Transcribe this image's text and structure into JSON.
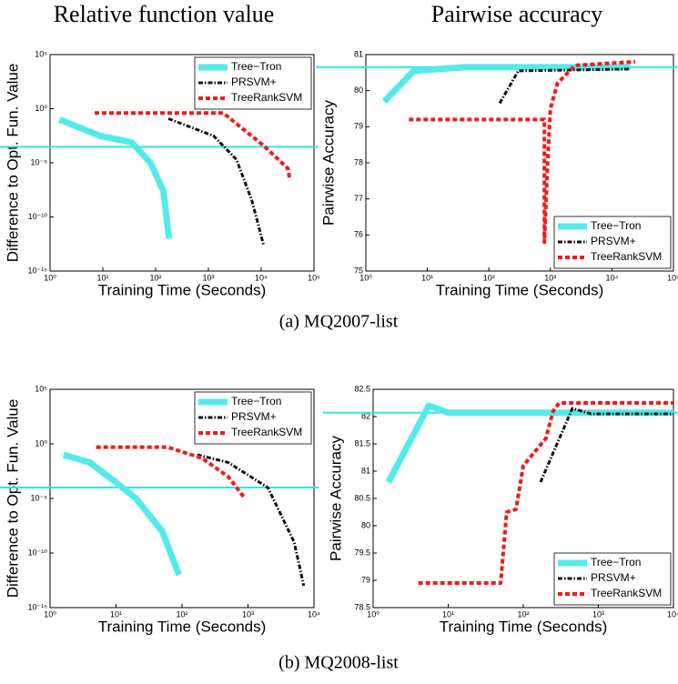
{
  "column_titles": [
    "Relative function value",
    "Pairwise accuracy"
  ],
  "captions": [
    "(a) MQ2007-list",
    "(b) MQ2008-list"
  ],
  "chart_data": [
    {
      "type": "line",
      "xlabel": "Training Time (Seconds)",
      "ylabel": "Difference to Opt. Fun. Value",
      "xlog": true,
      "ylog": true,
      "xlim": [
        1,
        100000
      ],
      "ylim": [
        1e-15,
        100000
      ],
      "xticks": [
        {
          "value": 1,
          "label": "10⁰"
        },
        {
          "value": 10,
          "label": "10¹"
        },
        {
          "value": 100,
          "label": "10²"
        },
        {
          "value": 1000,
          "label": "10³"
        },
        {
          "value": 10000,
          "label": "10⁴"
        },
        {
          "value": 100000,
          "label": "10⁵"
        }
      ],
      "yticks": [
        {
          "value": 1e-15,
          "label": "10⁻¹⁵"
        },
        {
          "value": 1e-10,
          "label": "10⁻¹⁰"
        },
        {
          "value": 1e-05,
          "label": "10⁻⁵"
        },
        {
          "value": 1,
          "label": "10⁰"
        },
        {
          "value": 100000,
          "label": "10⁵"
        }
      ],
      "hline": {
        "value": 0.0003,
        "color": "#33e6e6"
      },
      "legend": "upper right",
      "series": [
        {
          "name": "Tree−Tron",
          "color": "#55eaea",
          "style": "solid",
          "x": [
            1.5,
            9,
            35,
            80,
            140,
            180
          ],
          "values": [
            0.1,
            0.003,
            0.0008,
            1e-05,
            2.5e-08,
            1e-12
          ]
        },
        {
          "name": "PRSVM+",
          "color": "#111111",
          "style": "dashdot",
          "x": [
            175,
            1260,
            3400,
            6700,
            11000
          ],
          "values": [
            0.12,
            0.003,
            2e-05,
            3e-09,
            3e-13
          ]
        },
        {
          "name": "TreeRankSVM",
          "color": "#ee1c1c",
          "style": "dashed",
          "x": [
            7,
            1900,
            11000,
            32000,
            35000
          ],
          "values": [
            0.4,
            0.4,
            0.0004,
            3e-06,
            2.5e-07
          ]
        }
      ]
    },
    {
      "type": "line",
      "xlabel": "Training Time (Seconds)",
      "ylabel": "Pairwise Accuracy",
      "xlog": true,
      "ylog": false,
      "xlim": [
        1,
        100000
      ],
      "ylim": [
        75,
        81
      ],
      "xticks": [
        {
          "value": 1,
          "label": "10⁰"
        },
        {
          "value": 10,
          "label": "10¹"
        },
        {
          "value": 100,
          "label": "10²"
        },
        {
          "value": 1000,
          "label": "10³"
        },
        {
          "value": 10000,
          "label": "10⁴"
        },
        {
          "value": 100000,
          "label": "10⁵"
        }
      ],
      "yticks": [
        75,
        76,
        77,
        78,
        79,
        80,
        81
      ],
      "hline": {
        "value": 80.65,
        "color": "#33e6e6"
      },
      "legend": "lower right",
      "series": [
        {
          "name": "Tree−Tron",
          "color": "#55eaea",
          "style": "solid",
          "x": [
            2,
            6,
            40,
            20000
          ],
          "values": [
            79.7,
            80.55,
            80.65,
            80.65
          ]
        },
        {
          "name": "PRSVM+",
          "color": "#111111",
          "style": "dashdot",
          "x": [
            150,
            300,
            20000
          ],
          "values": [
            79.65,
            80.55,
            80.6
          ]
        },
        {
          "name": "TreeRankSVM",
          "color": "#ee1c1c",
          "style": "dashed",
          "x": [
            5,
            800,
            800,
            900,
            1000,
            1300,
            2500,
            24000
          ],
          "values": [
            79.2,
            79.2,
            75.8,
            78,
            79.5,
            80.2,
            80.7,
            80.8
          ]
        }
      ]
    },
    {
      "type": "line",
      "xlabel": "Training Time (Seconds)",
      "ylabel": "Difference to Opt. Fun. Value",
      "xlog": true,
      "ylog": true,
      "xlim": [
        1,
        10000
      ],
      "ylim": [
        1e-15,
        100000
      ],
      "xticks": [
        {
          "value": 1,
          "label": "10⁰"
        },
        {
          "value": 10,
          "label": "10¹"
        },
        {
          "value": 100,
          "label": "10²"
        },
        {
          "value": 1000,
          "label": "10³"
        },
        {
          "value": 10000,
          "label": "10⁴"
        }
      ],
      "yticks": [
        {
          "value": 1e-15,
          "label": "10⁻¹⁵"
        },
        {
          "value": 1e-10,
          "label": "10⁻¹⁰"
        },
        {
          "value": 1e-05,
          "label": "10⁻⁵"
        },
        {
          "value": 1,
          "label": "10⁰"
        },
        {
          "value": 100000,
          "label": "10⁵"
        }
      ],
      "hline": {
        "value": 0.0001,
        "color": "#33e6e6"
      },
      "legend": "upper right",
      "series": [
        {
          "name": "Tree−Tron",
          "color": "#55eaea",
          "style": "solid",
          "x": [
            1.6,
            4,
            10,
            20,
            50,
            90
          ],
          "values": [
            0.1,
            0.02,
            0.0003,
            1e-05,
            1e-08,
            1e-12
          ]
        },
        {
          "name": "PRSVM+",
          "color": "#111111",
          "style": "dashdot",
          "x": [
            170,
            500,
            2000,
            5000,
            7000
          ],
          "values": [
            0.1,
            0.02,
            0.0001,
            1e-09,
            1e-13
          ]
        },
        {
          "name": "TreeRankSVM",
          "color": "#ee1c1c",
          "style": "dashed",
          "x": [
            5,
            60,
            200,
            500,
            900
          ],
          "values": [
            0.5,
            0.5,
            0.05,
            0.001,
            1e-05
          ]
        }
      ]
    },
    {
      "type": "line",
      "xlabel": "Training Time (Seconds)",
      "ylabel": "Pairwise Accuracy",
      "xlog": true,
      "ylog": false,
      "xlim": [
        1,
        10000
      ],
      "ylim": [
        78.5,
        82.5
      ],
      "xticks": [
        {
          "value": 1,
          "label": "10⁰"
        },
        {
          "value": 10,
          "label": "10¹"
        },
        {
          "value": 100,
          "label": "10²"
        },
        {
          "value": 1000,
          "label": "10³"
        },
        {
          "value": 10000,
          "label": "10⁴"
        }
      ],
      "yticks": [
        78.5,
        79,
        79.5,
        80,
        80.5,
        81,
        81.5,
        82,
        82.5
      ],
      "hline": {
        "value": 82.07,
        "color": "#33e6e6"
      },
      "legend": "lower right",
      "series": [
        {
          "name": "Tree−Tron",
          "color": "#55eaea",
          "style": "solid",
          "x": [
            1.6,
            5.5,
            10,
            10000
          ],
          "values": [
            80.8,
            82.2,
            82.07,
            82.07
          ]
        },
        {
          "name": "PRSVM+",
          "color": "#111111",
          "style": "dashdot",
          "x": [
            170,
            450,
            800,
            10000
          ],
          "values": [
            80.8,
            82.15,
            82.05,
            82.05
          ]
        },
        {
          "name": "TreeRankSVM",
          "color": "#ee1c1c",
          "style": "dashed",
          "x": [
            4,
            50,
            60,
            80,
            100,
            200,
            250,
            300,
            10000
          ],
          "values": [
            78.95,
            78.95,
            80.25,
            80.3,
            81.1,
            81.6,
            82.1,
            82.25,
            82.25
          ]
        }
      ]
    }
  ]
}
